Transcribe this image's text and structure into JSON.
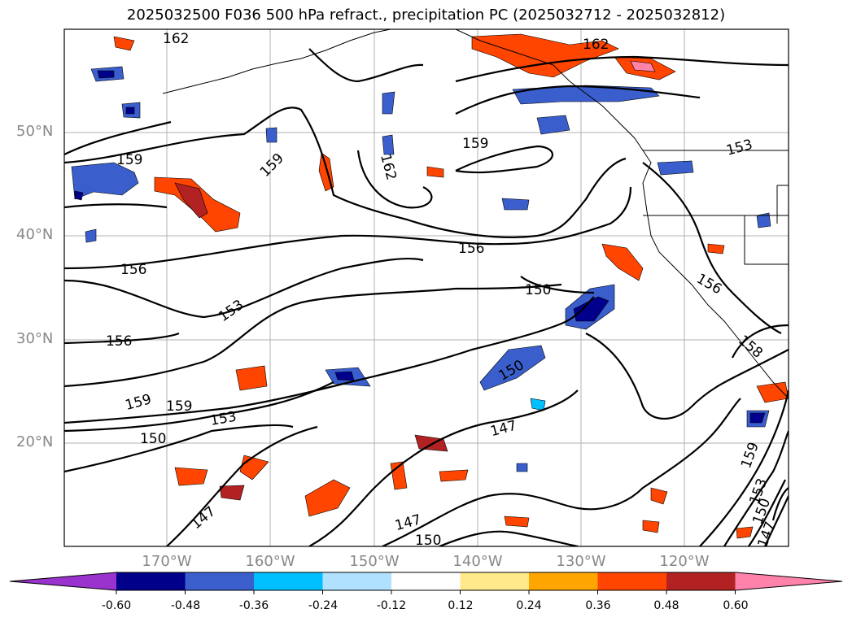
{
  "title": "2025032500 F036 500 hPa refract., precipitation PC (2025032712 - 2025032812)",
  "lat_labels": [
    "50°N",
    "40°N",
    "30°N",
    "20°N"
  ],
  "lon_labels": [
    "170°W",
    "160°W",
    "150°W",
    "140°W",
    "130°W",
    "120°W"
  ],
  "contour_labels": [
    "162",
    "162",
    "162",
    "159",
    "159",
    "159",
    "159",
    "159",
    "156",
    "156",
    "156",
    "156",
    "153",
    "153",
    "153",
    "153",
    "150",
    "150",
    "150",
    "150",
    "150",
    "147",
    "147",
    "147",
    "147",
    "159",
    "158"
  ],
  "colorbar": {
    "ticks": [
      "-0.60",
      "-0.48",
      "-0.36",
      "-0.24",
      "-0.12",
      "0.12",
      "0.24",
      "0.36",
      "0.48",
      "0.60"
    ],
    "colors": [
      "#9a32cd",
      "#00008b",
      "#3a5fcd",
      "#00bfff",
      "#b0e2ff",
      "#ffffff",
      "#ffe98a",
      "#ffa500",
      "#ff4500",
      "#b22222",
      "#ff82ab"
    ]
  }
}
